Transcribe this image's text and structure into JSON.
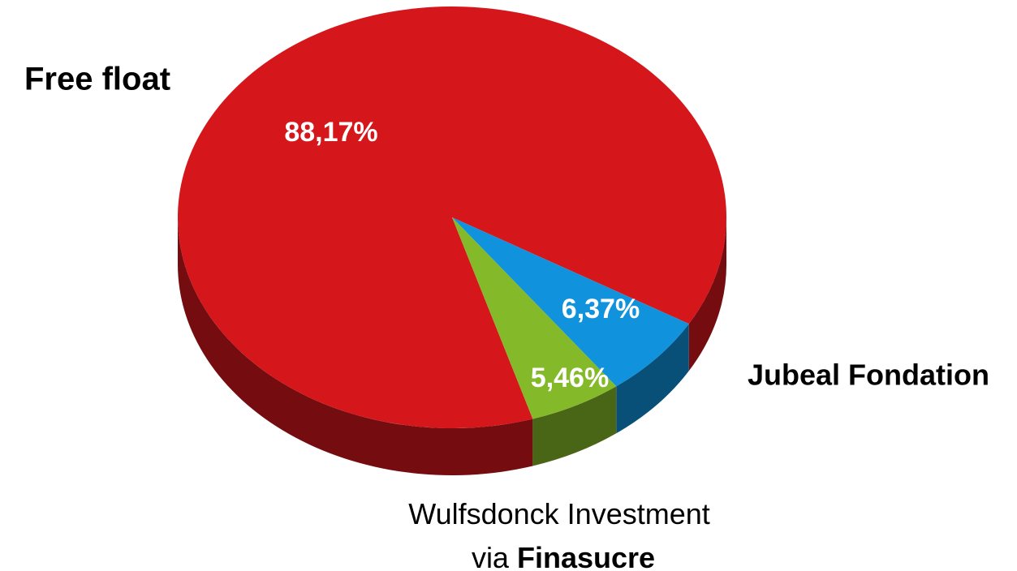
{
  "chart_data": {
    "type": "pie",
    "categories": [
      "Free float",
      "Jubeal Fondation",
      "Wulfsdonck Investment via Finasucre"
    ],
    "values": [
      88.17,
      6.37,
      5.46
    ],
    "value_labels": [
      "88,17%",
      "6,37%",
      "5,46%"
    ],
    "colors": [
      "#d5161b",
      "#1192dc",
      "#84b92a"
    ]
  }
}
